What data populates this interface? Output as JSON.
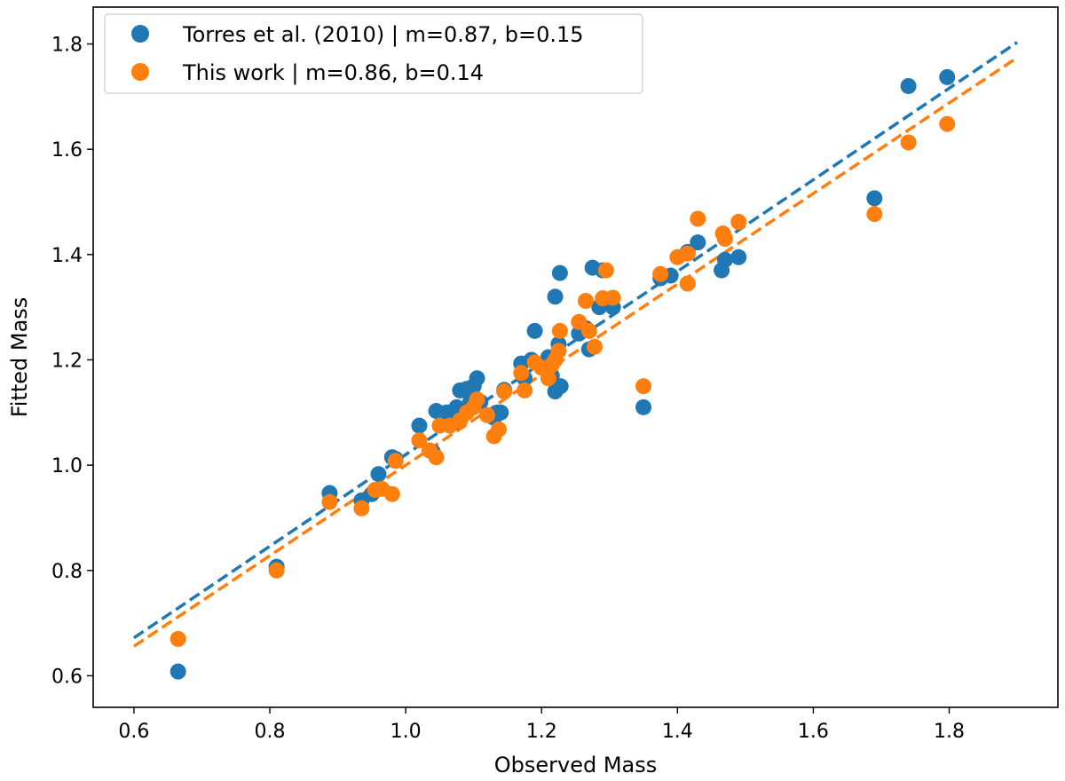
{
  "chart_data": {
    "type": "scatter",
    "title": "",
    "xlabel": "Observed Mass",
    "ylabel": "Fitted Mass",
    "xlim": [
      0.54,
      1.96
    ],
    "ylim": [
      0.54,
      1.87
    ],
    "xticks": [
      0.6,
      0.8,
      1.0,
      1.2,
      1.4,
      1.6,
      1.8
    ],
    "yticks": [
      0.6,
      0.8,
      1.0,
      1.2,
      1.4,
      1.6,
      1.8
    ],
    "xtick_labels": [
      "0.6",
      "0.8",
      "1.0",
      "1.2",
      "1.4",
      "1.6",
      "1.8"
    ],
    "ytick_labels": [
      "0.6",
      "0.8",
      "1.0",
      "1.2",
      "1.4",
      "1.6",
      "1.8"
    ],
    "grid": false,
    "legend_position": "top-left",
    "series": [
      {
        "name": "Torres et al. (2010) | m=0.87, b=0.15",
        "color": "#1f77b4",
        "fit": {
          "m": 0.87,
          "b": 0.15,
          "x_range": [
            0.6,
            1.9
          ]
        },
        "points": [
          [
            0.665,
            0.608
          ],
          [
            0.81,
            0.807
          ],
          [
            0.888,
            0.947
          ],
          [
            0.935,
            0.933
          ],
          [
            0.95,
            0.945
          ],
          [
            0.96,
            0.983
          ],
          [
            0.98,
            1.015
          ],
          [
            0.985,
            1.012
          ],
          [
            1.02,
            1.075
          ],
          [
            1.04,
            1.025
          ],
          [
            1.045,
            1.103
          ],
          [
            1.06,
            1.1
          ],
          [
            1.07,
            1.08
          ],
          [
            1.075,
            1.11
          ],
          [
            1.08,
            1.142
          ],
          [
            1.09,
            1.145
          ],
          [
            1.095,
            1.12
          ],
          [
            1.1,
            1.15
          ],
          [
            1.105,
            1.165
          ],
          [
            1.11,
            1.12
          ],
          [
            1.13,
            1.09
          ],
          [
            1.135,
            1.1
          ],
          [
            1.14,
            1.1
          ],
          [
            1.145,
            1.143
          ],
          [
            1.17,
            1.193
          ],
          [
            1.175,
            1.165
          ],
          [
            1.185,
            1.2
          ],
          [
            1.19,
            1.255
          ],
          [
            1.21,
            1.205
          ],
          [
            1.215,
            1.17
          ],
          [
            1.22,
            1.32
          ],
          [
            1.22,
            1.14
          ],
          [
            1.225,
            1.23
          ],
          [
            1.227,
            1.365
          ],
          [
            1.228,
            1.15
          ],
          [
            1.255,
            1.25
          ],
          [
            1.265,
            1.26
          ],
          [
            1.27,
            1.22
          ],
          [
            1.275,
            1.375
          ],
          [
            1.285,
            1.3
          ],
          [
            1.29,
            1.37
          ],
          [
            1.295,
            1.31
          ],
          [
            1.305,
            1.3
          ],
          [
            1.35,
            1.11
          ],
          [
            1.375,
            1.355
          ],
          [
            1.39,
            1.36
          ],
          [
            1.415,
            1.345
          ],
          [
            1.415,
            1.405
          ],
          [
            1.43,
            1.423
          ],
          [
            1.465,
            1.37
          ],
          [
            1.47,
            1.39
          ],
          [
            1.49,
            1.395
          ],
          [
            1.69,
            1.507
          ],
          [
            1.74,
            1.72
          ],
          [
            1.797,
            1.737
          ]
        ]
      },
      {
        "name": "This work | m=0.86, b=0.14",
        "color": "#ff7f0e",
        "fit": {
          "m": 0.86,
          "b": 0.14,
          "x_range": [
            0.6,
            1.9
          ]
        },
        "points": [
          [
            0.665,
            0.67
          ],
          [
            0.81,
            0.8
          ],
          [
            0.888,
            0.93
          ],
          [
            0.935,
            0.918
          ],
          [
            0.955,
            0.953
          ],
          [
            0.965,
            0.955
          ],
          [
            0.98,
            0.945
          ],
          [
            0.985,
            1.008
          ],
          [
            1.02,
            1.047
          ],
          [
            1.035,
            1.028
          ],
          [
            1.045,
            1.015
          ],
          [
            1.05,
            1.075
          ],
          [
            1.065,
            1.075
          ],
          [
            1.08,
            1.085
          ],
          [
            1.09,
            1.1
          ],
          [
            1.1,
            1.11
          ],
          [
            1.105,
            1.125
          ],
          [
            1.12,
            1.095
          ],
          [
            1.13,
            1.055
          ],
          [
            1.137,
            1.068
          ],
          [
            1.145,
            1.14
          ],
          [
            1.17,
            1.175
          ],
          [
            1.175,
            1.142
          ],
          [
            1.19,
            1.195
          ],
          [
            1.2,
            1.185
          ],
          [
            1.21,
            1.165
          ],
          [
            1.215,
            1.19
          ],
          [
            1.22,
            1.2
          ],
          [
            1.225,
            1.217
          ],
          [
            1.227,
            1.255
          ],
          [
            1.255,
            1.272
          ],
          [
            1.265,
            1.312
          ],
          [
            1.27,
            1.255
          ],
          [
            1.278,
            1.225
          ],
          [
            1.29,
            1.317
          ],
          [
            1.295,
            1.37
          ],
          [
            1.305,
            1.318
          ],
          [
            1.35,
            1.15
          ],
          [
            1.375,
            1.363
          ],
          [
            1.4,
            1.395
          ],
          [
            1.415,
            1.345
          ],
          [
            1.415,
            1.402
          ],
          [
            1.43,
            1.468
          ],
          [
            1.467,
            1.44
          ],
          [
            1.47,
            1.43
          ],
          [
            1.49,
            1.462
          ],
          [
            1.69,
            1.477
          ],
          [
            1.74,
            1.613
          ],
          [
            1.797,
            1.648
          ]
        ]
      }
    ]
  }
}
